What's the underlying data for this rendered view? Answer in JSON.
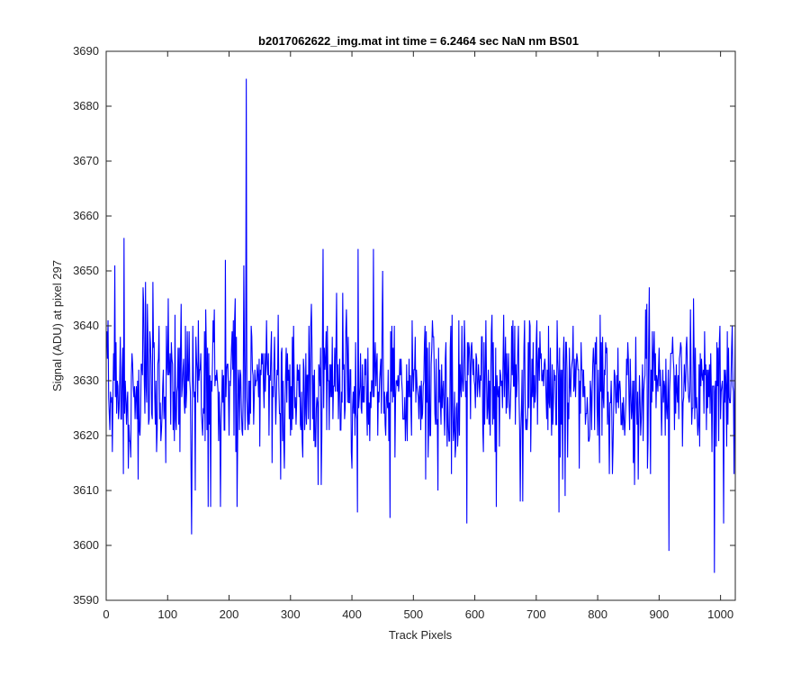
{
  "chart_data": {
    "type": "line",
    "title": "b2017062622_img.mat int time = 6.2464 sec  NaN nm BS01",
    "xlabel": "Track Pixels",
    "ylabel": "Signal (ADU) at pixel 297",
    "xlim": [
      0,
      1024
    ],
    "ylim": [
      3590,
      3690
    ],
    "xticks": [
      0,
      100,
      200,
      300,
      400,
      500,
      600,
      700,
      800,
      900,
      1000
    ],
    "yticks": [
      3590,
      3600,
      3610,
      3620,
      3630,
      3640,
      3650,
      3660,
      3670,
      3680,
      3690
    ],
    "grid": false,
    "series_color": "#0000ff",
    "noise": {
      "mean": 3629,
      "std": 6.5,
      "count": 1024,
      "low_clip": 3605,
      "high_clip": 3652
    },
    "series": [
      {
        "x_start": 1,
        "x_step": 1,
        "key_points": [
          [
            3,
            3641
          ],
          [
            10,
            3617
          ],
          [
            14,
            3651
          ],
          [
            20,
            3623
          ],
          [
            28,
            3613
          ],
          [
            29,
            3656
          ],
          [
            36,
            3614
          ],
          [
            45,
            3627
          ],
          [
            52,
            3612
          ],
          [
            60,
            3647
          ],
          [
            64,
            3648
          ],
          [
            70,
            3623
          ],
          [
            77,
            3636
          ],
          [
            88,
            3626
          ],
          [
            97,
            3615
          ],
          [
            110,
            3628
          ],
          [
            117,
            3636
          ],
          [
            122,
            3644
          ],
          [
            130,
            3625
          ],
          [
            138,
            3615
          ],
          [
            139,
            3602
          ],
          [
            145,
            3610
          ],
          [
            150,
            3641
          ],
          [
            156,
            3622
          ],
          [
            162,
            3643
          ],
          [
            166,
            3607
          ],
          [
            170,
            3607
          ],
          [
            176,
            3643
          ],
          [
            180,
            3632
          ],
          [
            186,
            3607
          ],
          [
            194,
            3652
          ],
          [
            200,
            3620
          ],
          [
            209,
            3641
          ],
          [
            213,
            3607
          ],
          [
            220,
            3625
          ],
          [
            224,
            3651
          ],
          [
            228,
            3685
          ],
          [
            230,
            3623
          ],
          [
            238,
            3632
          ],
          [
            250,
            3618
          ],
          [
            260,
            3633
          ],
          [
            270,
            3615
          ],
          [
            280,
            3642
          ],
          [
            290,
            3614
          ],
          [
            300,
            3620
          ],
          [
            310,
            3626
          ],
          [
            320,
            3616
          ],
          [
            330,
            3640
          ],
          [
            340,
            3618
          ],
          [
            345,
            3611
          ],
          [
            350,
            3611
          ],
          [
            353,
            3654
          ],
          [
            360,
            3640
          ],
          [
            375,
            3646
          ],
          [
            378,
            3623
          ],
          [
            385,
            3646
          ],
          [
            400,
            3614
          ],
          [
            410,
            3654
          ],
          [
            418,
            3626
          ],
          [
            425,
            3620
          ],
          [
            435,
            3654
          ],
          [
            444,
            3626
          ],
          [
            450,
            3650
          ],
          [
            455,
            3620
          ],
          [
            462,
            3605
          ],
          [
            466,
            3626
          ],
          [
            480,
            3634
          ],
          [
            490,
            3619
          ],
          [
            500,
            3628
          ],
          [
            512,
            3621
          ],
          [
            528,
            3620
          ],
          [
            540,
            3610
          ],
          [
            550,
            3624
          ],
          [
            560,
            3636
          ],
          [
            574,
            3641
          ],
          [
            580,
            3630
          ],
          [
            587,
            3604
          ],
          [
            600,
            3629
          ],
          [
            612,
            3638
          ],
          [
            625,
            3620
          ],
          [
            640,
            3618
          ],
          [
            651,
            3624
          ],
          [
            660,
            3640
          ],
          [
            674,
            3608
          ],
          [
            678,
            3608
          ],
          [
            690,
            3640
          ],
          [
            700,
            3637
          ],
          [
            712,
            3629
          ],
          [
            725,
            3620
          ],
          [
            737,
            3606
          ],
          [
            750,
            3632
          ],
          [
            760,
            3640
          ],
          [
            770,
            3614
          ],
          [
            790,
            3621
          ],
          [
            800,
            3620
          ],
          [
            807,
            3620
          ],
          [
            817,
            3628
          ],
          [
            834,
            3625
          ],
          [
            850,
            3634
          ],
          [
            860,
            3611
          ],
          [
            870,
            3620
          ],
          [
            886,
            3613
          ],
          [
            900,
            3636
          ],
          [
            910,
            3620
          ],
          [
            916,
            3599
          ],
          [
            925,
            3621
          ],
          [
            940,
            3627
          ],
          [
            960,
            3625
          ],
          [
            976,
            3633
          ],
          [
            985,
            3628
          ],
          [
            990,
            3595
          ],
          [
            999,
            3640
          ],
          [
            1005,
            3604
          ],
          [
            1010,
            3618
          ],
          [
            1018,
            3636
          ],
          [
            1022,
            3613
          ],
          [
            1024,
            3640
          ]
        ]
      }
    ]
  }
}
